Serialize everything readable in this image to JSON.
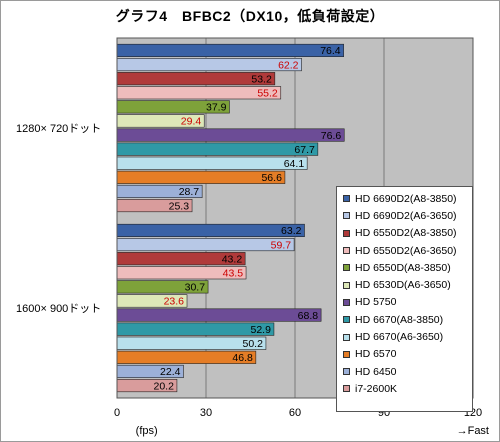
{
  "chart_data": {
    "type": "bar",
    "orientation": "horizontal",
    "title": "グラフ4　BFBC2（DX10，低負荷設定）",
    "xlabel": "(fps)",
    "x_direction_note": "→Fast",
    "xlim": [
      0,
      120
    ],
    "xticks": [
      0,
      30,
      60,
      90,
      120
    ],
    "grid": true,
    "legend_position": "right",
    "categories": [
      "1280× 720ドット",
      "1600× 900ドット"
    ],
    "series": [
      {
        "name": "HD 6690D2(A8-3850)",
        "color": "#3a62a6",
        "label_color": "#000000",
        "values": [
          76.4,
          63.2
        ]
      },
      {
        "name": "HD 6690D2(A6-3650)",
        "color": "#b7c8e6",
        "label_color": "#cc0000",
        "values": [
          62.2,
          59.7
        ]
      },
      {
        "name": "HD 6550D2(A8-3850)",
        "color": "#b03a3a",
        "label_color": "#000000",
        "values": [
          53.2,
          43.2
        ]
      },
      {
        "name": "HD 6550D2(A6-3650)",
        "color": "#efbcbc",
        "label_color": "#cc0000",
        "values": [
          55.2,
          43.5
        ]
      },
      {
        "name": "HD 6550D(A8-3850)",
        "color": "#7ea23a",
        "label_color": "#000000",
        "values": [
          37.9,
          30.7
        ]
      },
      {
        "name": "HD 6530D(A6-3650)",
        "color": "#dde8b8",
        "label_color": "#cc0000",
        "values": [
          29.4,
          23.6
        ]
      },
      {
        "name": "HD 5750",
        "color": "#6c4c96",
        "label_color": "#000000",
        "values": [
          76.6,
          68.8
        ]
      },
      {
        "name": "HD 6670(A8-3850)",
        "color": "#2f99a6",
        "label_color": "#000000",
        "values": [
          67.7,
          52.9
        ]
      },
      {
        "name": "HD 6670(A6-3650)",
        "color": "#b8e0ec",
        "label_color": "#000000",
        "values": [
          64.1,
          50.2
        ]
      },
      {
        "name": "HD 6570",
        "color": "#e57d26",
        "label_color": "#000000",
        "values": [
          56.6,
          46.8
        ]
      },
      {
        "name": "HD 6450",
        "color": "#9cb0d8",
        "label_color": "#000000",
        "values": [
          28.7,
          22.4
        ]
      },
      {
        "name": "i7-2600K",
        "color": "#d99c9c",
        "label_color": "#000000",
        "values": [
          25.3,
          20.2
        ]
      }
    ]
  }
}
